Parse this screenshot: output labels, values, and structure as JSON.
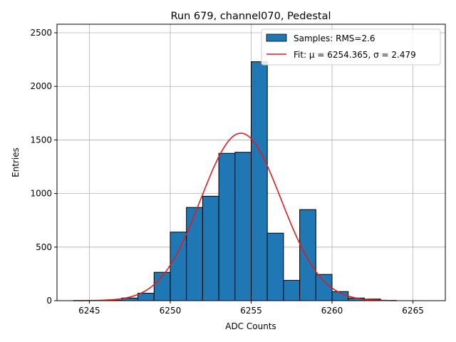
{
  "chart_data": {
    "type": "bar",
    "title": "Run 679, channel070, Pedestal",
    "xlabel": "ADC Counts",
    "ylabel": "Entries",
    "xlim": [
      6243.0,
      6267.0
    ],
    "ylim": [
      0,
      2580
    ],
    "xticks": [
      6245,
      6250,
      6255,
      6260,
      6265
    ],
    "yticks": [
      0,
      500,
      1000,
      1500,
      2000,
      2500
    ],
    "grid": true,
    "legend_position": "top-right",
    "histogram": {
      "name": "Samples: RMS=2.6",
      "color": "#1f77b4",
      "bin_edges": [
        6244,
        6245,
        6246,
        6247,
        6248,
        6249,
        6250,
        6251,
        6252,
        6253,
        6254,
        6255,
        6256,
        6257,
        6258,
        6259,
        6260,
        6261,
        6262,
        6263,
        6264,
        6265,
        6266
      ],
      "counts": [
        0,
        0,
        5,
        25,
        70,
        265,
        640,
        870,
        975,
        1375,
        1385,
        2230,
        630,
        190,
        850,
        245,
        85,
        25,
        15,
        0,
        0,
        0
      ]
    },
    "fit": {
      "name": "Fit: μ = 6254.365, σ = 2.479",
      "color": "#e41a1c",
      "mu": 6254.365,
      "sigma": 2.479,
      "amplitude": 1563,
      "x_range": [
        6244,
        6264
      ]
    }
  }
}
